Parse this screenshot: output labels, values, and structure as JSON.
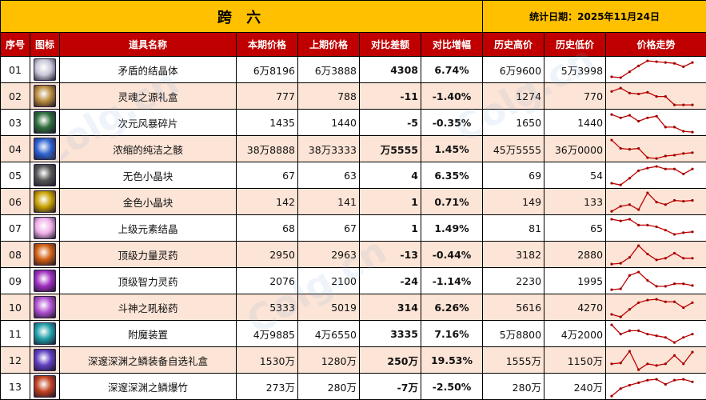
{
  "title": {
    "main": "跨 六",
    "date_label": "统计日期：2025年11月24日"
  },
  "headers": [
    "序号",
    "图标",
    "道具名称",
    "本期价格",
    "上期价格",
    "对比差额",
    "对比增幅",
    "历史高价",
    "历史低价",
    "价格走势"
  ],
  "colors": {
    "title_bg": "#ffc000",
    "header_bg": "#c00000",
    "row_alt_bg": "#fce4d6",
    "up": "#ff0000",
    "down": "#00b050",
    "trend_line": "#c00000"
  },
  "rows": [
    {
      "idx": "01",
      "icon": "crystal-icon",
      "icon_color": "#c8c8d8",
      "name": "矛盾的结晶体",
      "current": "6万8196",
      "previous": "6万3888",
      "diff": "4308",
      "pct": "6.74%",
      "dir": "up",
      "high": "6万9600",
      "low": "5万3998",
      "trend": [
        10,
        10.5,
        7,
        3.5,
        0.5,
        1,
        1.5,
        2,
        4,
        1.5
      ]
    },
    {
      "idx": "02",
      "icon": "gift-box-icon",
      "icon_color": "#b88a3a",
      "name": "灵魂之源礼盒",
      "current": "777",
      "previous": "788",
      "diff": "-11",
      "pct": "-1.40%",
      "dir": "down",
      "high": "1274",
      "low": "770",
      "trend": [
        3,
        1,
        4,
        4.5,
        3.5,
        6,
        6,
        11,
        11,
        11
      ]
    },
    {
      "idx": "03",
      "icon": "storm-shard-icon",
      "icon_color": "#2e6e3a",
      "name": "次元风暴碎片",
      "current": "1435",
      "previous": "1440",
      "diff": "-5",
      "pct": "-0.35%",
      "dir": "down",
      "high": "1650",
      "low": "1440",
      "trend": [
        1,
        3,
        1.5,
        5,
        3,
        2,
        8.5,
        8.5,
        11,
        11.5
      ]
    },
    {
      "idx": "04",
      "icon": "essence-icon",
      "icon_color": "#2a5fd0",
      "name": "浓缩的纯洁之骸",
      "current": "38万8888",
      "previous": "38万3333",
      "diff": "万5555",
      "pct": "1.45%",
      "dir": "up",
      "high": "45万5555",
      "low": "36万0000",
      "trend": [
        0.5,
        5.5,
        6,
        5.5,
        11,
        11.5,
        10,
        9.5,
        8.5,
        8
      ]
    },
    {
      "idx": "05",
      "icon": "colorless-cube-icon",
      "icon_color": "#555555",
      "name": "无色小晶块",
      "current": "67",
      "previous": "63",
      "diff": "4",
      "pct": "6.35%",
      "dir": "up",
      "high": "69",
      "low": "54",
      "trend": [
        10.5,
        11.5,
        7.5,
        3,
        1.5,
        0.5,
        2,
        2,
        5,
        2
      ]
    },
    {
      "idx": "06",
      "icon": "gold-cube-icon",
      "icon_color": "#c8a000",
      "name": "金色小晶块",
      "current": "142",
      "previous": "141",
      "diff": "1",
      "pct": "0.71%",
      "dir": "up",
      "high": "149",
      "low": "133",
      "trend": [
        11.5,
        8.5,
        7.5,
        10.5,
        0.5,
        6,
        7.5,
        5,
        5.5,
        5
      ]
    },
    {
      "idx": "07",
      "icon": "element-crystal-icon",
      "icon_color": "#f0b0e8",
      "name": "上级元素结晶",
      "current": "68",
      "previous": "67",
      "diff": "1",
      "pct": "1.49%",
      "dir": "up",
      "high": "81",
      "low": "65",
      "trend": [
        0.5,
        1.5,
        0.5,
        4,
        4,
        5,
        7,
        9.5,
        8.5,
        8
      ]
    },
    {
      "idx": "08",
      "icon": "strength-elixir-icon",
      "icon_color": "#d06010",
      "name": "顶级力量灵药",
      "current": "2950",
      "previous": "2963",
      "diff": "-13",
      "pct": "-0.44%",
      "dir": "down",
      "high": "3182",
      "low": "2880",
      "trend": [
        11.5,
        11,
        7.5,
        0.5,
        5.5,
        9,
        8,
        5,
        8,
        8
      ]
    },
    {
      "idx": "09",
      "icon": "intellect-elixir-icon",
      "icon_color": "#a030c0",
      "name": "顶级智力灵药",
      "current": "2076",
      "previous": "2100",
      "diff": "-24",
      "pct": "-1.14%",
      "dir": "down",
      "high": "2230",
      "low": "1995",
      "trend": [
        11,
        10.5,
        2.5,
        0.5,
        5.5,
        9,
        9,
        7.5,
        7.5,
        8.5
      ]
    },
    {
      "idx": "10",
      "icon": "war-god-potion-icon",
      "icon_color": "#b050d0",
      "name": "斗神之吼秘药",
      "current": "5333",
      "previous": "5019",
      "diff": "314",
      "pct": "6.26%",
      "dir": "up",
      "high": "5616",
      "low": "4270",
      "trend": [
        10,
        11.5,
        7,
        3,
        1.5,
        1,
        2.5,
        2.5,
        6,
        3
      ]
    },
    {
      "idx": "11",
      "icon": "enchant-device-icon",
      "icon_color": "#20a0a8",
      "name": "附魔装置",
      "current": "4万9885",
      "previous": "4万6550",
      "diff": "3335",
      "pct": "7.16%",
      "dir": "up",
      "high": "5万8800",
      "low": "4万2000",
      "trend": [
        0.5,
        6,
        4,
        4,
        6,
        7,
        8,
        11,
        8,
        6
      ]
    },
    {
      "idx": "12",
      "icon": "abyss-gear-box-icon",
      "icon_color": "#6040c0",
      "name": "深邃深渊之鳞装备自选礼盒",
      "current": "1530万",
      "previous": "1280万",
      "diff": "250万",
      "pct": "19.53%",
      "dir": "up",
      "high": "1555万",
      "low": "1150万",
      "trend": [
        8,
        7.5,
        0.5,
        11.5,
        8,
        9,
        8,
        3,
        8,
        1
      ]
    },
    {
      "idx": "13",
      "icon": "abyss-firecracker-icon",
      "icon_color": "#c04020",
      "name": "深邃深渊之鳞爆竹",
      "current": "273万",
      "previous": "280万",
      "diff": "-7万",
      "pct": "-2.50%",
      "dir": "down",
      "high": "280万",
      "low": "240万",
      "trend": [
        11.5,
        7,
        5,
        3.5,
        2,
        1.5,
        4.5,
        2,
        1.5,
        3
      ]
    }
  ]
}
